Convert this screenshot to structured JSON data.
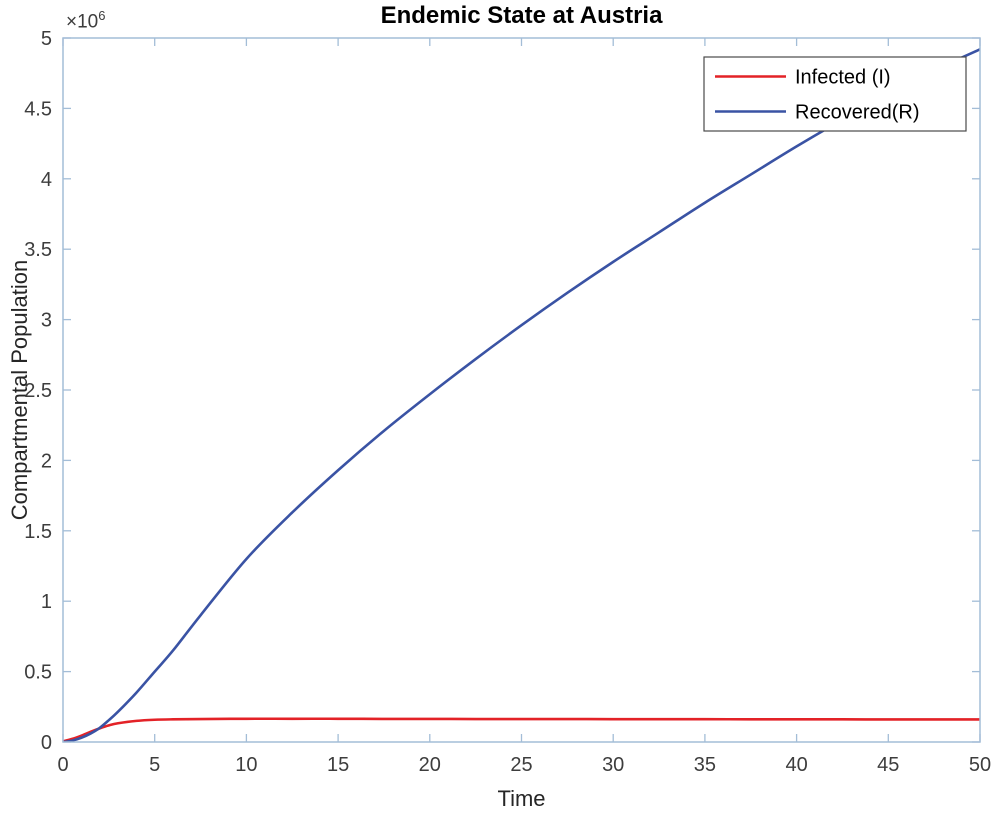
{
  "chart_data": {
    "type": "line",
    "title": "Endemic State at Austria",
    "xlabel": "Time",
    "ylabel": "Compartmental Population",
    "xlim": [
      0,
      50
    ],
    "ylim": [
      0,
      5000000
    ],
    "xticks": [
      0,
      5,
      10,
      15,
      20,
      25,
      30,
      35,
      40,
      45,
      50
    ],
    "xtick_labels": [
      "0",
      "5",
      "10",
      "15",
      "20",
      "25",
      "30",
      "35",
      "40",
      "45",
      "50"
    ],
    "yticks": [
      0,
      500000,
      1000000,
      1500000,
      2000000,
      2500000,
      3000000,
      3500000,
      4000000,
      4500000,
      5000000
    ],
    "ytick_labels": [
      "0",
      "0.5",
      "1",
      "1.5",
      "2",
      "2.5",
      "3",
      "3.5",
      "4",
      "4.5",
      "5"
    ],
    "y_axis_multiplier": "×10^6",
    "grid": false,
    "legend_position": "top-right",
    "x": [
      0,
      0.5,
      1,
      1.5,
      2,
      2.5,
      3,
      4,
      5,
      6,
      7.5,
      10,
      12.5,
      15,
      17.5,
      20,
      22.5,
      25,
      27.5,
      30,
      32.5,
      35,
      37.5,
      40,
      42.5,
      45,
      47.5,
      50
    ],
    "series": [
      {
        "name": "Infected (I)",
        "color": "#e32227",
        "values": [
          5000,
          22000,
          45000,
          72000,
          97000,
          118000,
          133000,
          150000,
          158000,
          161000,
          163000,
          165000,
          165000,
          165000,
          164000,
          164000,
          163000,
          163000,
          163000,
          162000,
          162000,
          162000,
          161000,
          161000,
          161000,
          160000,
          160000,
          160000
        ]
      },
      {
        "name": "Recovered(R)",
        "color": "#3a53a4",
        "values": [
          0,
          10000,
          30000,
          60000,
          100000,
          155000,
          215000,
          350000,
          500000,
          650000,
          900000,
          1300000,
          1630000,
          1930000,
          2210000,
          2470000,
          2720000,
          2960000,
          3190000,
          3410000,
          3620000,
          3830000,
          4030000,
          4230000,
          4420000,
          4600000,
          4770000,
          4920000
        ]
      }
    ]
  },
  "axes": {
    "y_multiplier_base": "×10",
    "y_multiplier_exp": "6",
    "frame_color": "#a3bdd7",
    "tick_label_color": "#3d3d3d",
    "legend_border_color": "#4a4a4a"
  }
}
